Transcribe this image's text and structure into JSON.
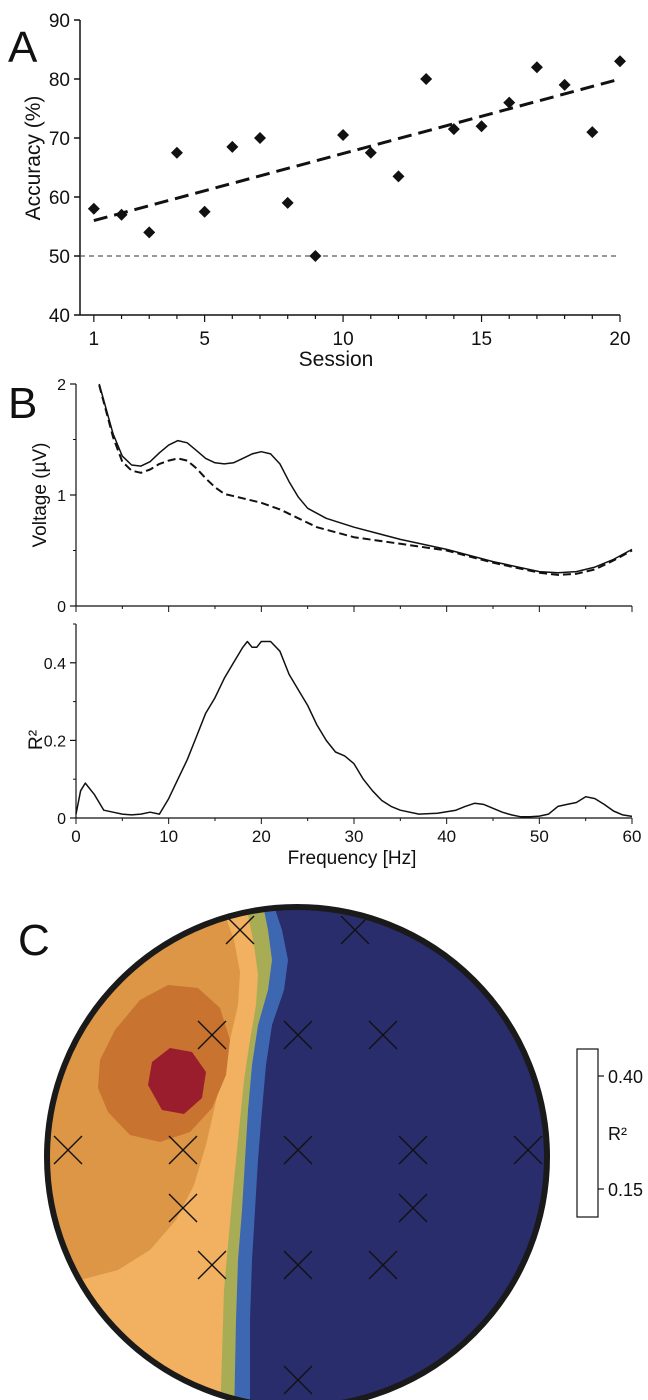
{
  "panels": {
    "a": "A",
    "b": "B",
    "c": "C"
  },
  "chart_data": [
    {
      "panel": "A",
      "type": "scatter",
      "xlabel": "Session",
      "ylabel": "Accuracy (%)",
      "xlim": [
        0.5,
        20
      ],
      "ylim": [
        40,
        90
      ],
      "x_ticks": [
        1,
        5,
        10,
        15,
        20
      ],
      "y_ticks": [
        40,
        50,
        60,
        70,
        80,
        90
      ],
      "series": [
        {
          "points": [
            [
              1,
              58
            ],
            [
              2,
              57
            ],
            [
              3,
              54
            ],
            [
              4,
              67.5
            ],
            [
              5,
              57.5
            ],
            [
              6,
              68.5
            ],
            [
              7,
              70
            ],
            [
              8,
              59
            ],
            [
              9,
              50
            ],
            [
              10,
              70.5
            ],
            [
              11,
              67.5
            ],
            [
              12,
              63.5
            ],
            [
              13,
              80
            ],
            [
              14,
              71.5
            ],
            [
              15,
              72
            ],
            [
              16,
              76
            ],
            [
              17,
              82
            ],
            [
              18,
              79
            ],
            [
              19,
              71
            ],
            [
              20,
              83
            ]
          ]
        }
      ],
      "trend_line": {
        "x": [
          1,
          20
        ],
        "y": [
          56,
          80
        ],
        "style": "dashed"
      },
      "reference_line": {
        "y": 50,
        "style": "dashed"
      }
    },
    {
      "panel": "B",
      "type": "line",
      "ylabel": "Voltage (µV)",
      "xlim": [
        0,
        60
      ],
      "ylim": [
        0,
        2
      ],
      "y_ticks": [
        0,
        1,
        2
      ],
      "series": [
        {
          "style": "solid",
          "x": [
            2.5,
            4,
            5,
            6,
            7,
            8,
            9,
            10,
            11,
            12,
            13,
            14,
            15,
            16,
            17,
            18,
            19,
            20,
            21,
            22,
            23,
            24,
            25,
            27,
            30,
            35,
            40,
            45,
            50,
            52,
            54,
            56,
            58,
            60
          ],
          "y": [
            2.0,
            1.55,
            1.35,
            1.27,
            1.26,
            1.3,
            1.38,
            1.45,
            1.49,
            1.47,
            1.4,
            1.33,
            1.29,
            1.28,
            1.29,
            1.33,
            1.37,
            1.39,
            1.37,
            1.28,
            1.12,
            0.98,
            0.88,
            0.79,
            0.71,
            0.6,
            0.51,
            0.4,
            0.31,
            0.3,
            0.31,
            0.35,
            0.42,
            0.51
          ]
        },
        {
          "style": "dashed",
          "x": [
            2.5,
            4,
            5,
            6,
            7,
            8,
            9,
            10,
            11,
            12,
            13,
            14,
            15,
            16,
            18,
            20,
            22,
            24,
            26,
            30,
            35,
            40,
            45,
            50,
            52,
            54,
            56,
            58,
            60
          ],
          "y": [
            1.99,
            1.52,
            1.3,
            1.22,
            1.2,
            1.23,
            1.28,
            1.31,
            1.33,
            1.31,
            1.24,
            1.15,
            1.07,
            1.01,
            0.97,
            0.93,
            0.87,
            0.79,
            0.71,
            0.62,
            0.56,
            0.5,
            0.39,
            0.3,
            0.28,
            0.29,
            0.33,
            0.41,
            0.5
          ]
        }
      ]
    },
    {
      "panel": "B-lower",
      "type": "line",
      "xlabel": "Frequency [Hz]",
      "ylabel": "R²",
      "xlim": [
        0,
        60
      ],
      "ylim": [
        0,
        0.5
      ],
      "x_ticks": [
        0,
        10,
        20,
        30,
        40,
        50,
        60
      ],
      "y_ticks": [
        0,
        0.2,
        0.4
      ],
      "series": [
        {
          "style": "solid",
          "x": [
            0,
            0.5,
            1,
            2,
            3,
            4,
            5,
            6,
            7,
            8,
            9,
            10,
            11,
            12,
            13,
            14,
            15,
            16,
            17,
            18,
            18.5,
            19,
            19.5,
            20,
            21,
            22,
            23,
            24,
            25,
            26,
            27,
            28,
            29,
            30,
            31,
            32,
            33,
            34,
            35,
            37,
            39,
            41,
            42,
            43,
            44,
            45,
            46,
            47,
            48,
            49,
            50,
            51,
            52,
            53,
            54,
            55,
            56,
            57,
            58,
            59,
            60
          ],
          "y": [
            0.01,
            0.07,
            0.09,
            0.06,
            0.02,
            0.015,
            0.01,
            0.008,
            0.01,
            0.015,
            0.01,
            0.05,
            0.1,
            0.15,
            0.21,
            0.27,
            0.31,
            0.36,
            0.4,
            0.44,
            0.455,
            0.44,
            0.44,
            0.455,
            0.455,
            0.43,
            0.37,
            0.33,
            0.29,
            0.24,
            0.2,
            0.17,
            0.16,
            0.14,
            0.1,
            0.07,
            0.045,
            0.03,
            0.02,
            0.01,
            0.012,
            0.02,
            0.03,
            0.038,
            0.035,
            0.025,
            0.015,
            0.008,
            0.003,
            0.003,
            0.005,
            0.01,
            0.03,
            0.035,
            0.04,
            0.055,
            0.05,
            0.035,
            0.018,
            0.008,
            0.004
          ]
        }
      ]
    },
    {
      "panel": "C",
      "type": "heatmap",
      "colorbar": {
        "label": "R²",
        "tick_labels": [
          "0.40",
          "0.15"
        ],
        "range": [
          0.15,
          0.4
        ],
        "colors": [
          "#292d6c",
          "#3e67b1",
          "#a8ad55",
          "#f1b160",
          "#dc9646",
          "#c8732f",
          "#9a1d2d"
        ]
      },
      "grid": "off",
      "legend": "right"
    }
  ]
}
